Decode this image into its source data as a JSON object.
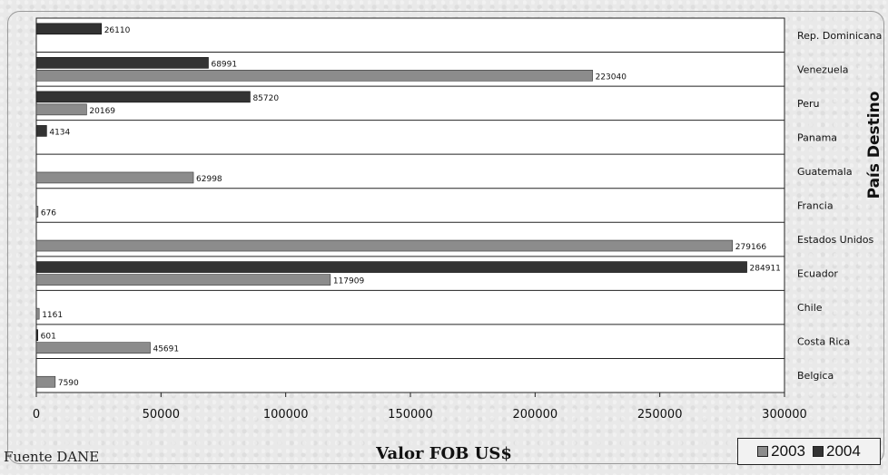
{
  "colors": {
    "series_2003": "#8c8c8c",
    "series_2004": "#333333",
    "plot_bg": "#ffffff",
    "axis": "#222222"
  },
  "source_note": "Fuente DANE",
  "chart_data": {
    "type": "bar",
    "orientation": "horizontal",
    "xlabel": "Valor FOB US$",
    "ylabel": "País Destino",
    "xlim": [
      0,
      300000
    ],
    "xticks": [
      "0",
      "50000",
      "100000",
      "150000",
      "200000",
      "250000",
      "300000"
    ],
    "legend_position": "bottom-right",
    "categories": [
      "Rep. Dominicana",
      "Venezuela",
      "Peru",
      "Panama",
      "Guatemala",
      "Francia",
      "Estados Unidos",
      "Ecuador",
      "Chile",
      "Costa Rica",
      "Belgica"
    ],
    "category_labels": [
      "Rep. Dominicana",
      "Venezuela",
      "Peru",
      "Panama",
      "Guatemala",
      "Francia",
      "Estados Unidos",
      "Ecuador",
      "Chile",
      "Costa Rica",
      "Belgica"
    ],
    "series": [
      {
        "name": "2003",
        "values": [
          null,
          223040,
          20169,
          null,
          62998,
          676,
          279166,
          117909,
          1161,
          45691,
          7590
        ],
        "labels": [
          "",
          "223040",
          "20169",
          "",
          "62998",
          "676",
          "279166",
          "117909",
          "1161",
          "45691",
          "7590"
        ]
      },
      {
        "name": "2004",
        "values": [
          26110,
          68991,
          85720,
          4134,
          null,
          null,
          null,
          284911,
          null,
          601,
          null
        ],
        "labels": [
          "26110",
          "68991",
          "85720",
          "4134",
          "",
          "",
          "",
          "284911",
          "",
          "601",
          ""
        ]
      }
    ]
  }
}
